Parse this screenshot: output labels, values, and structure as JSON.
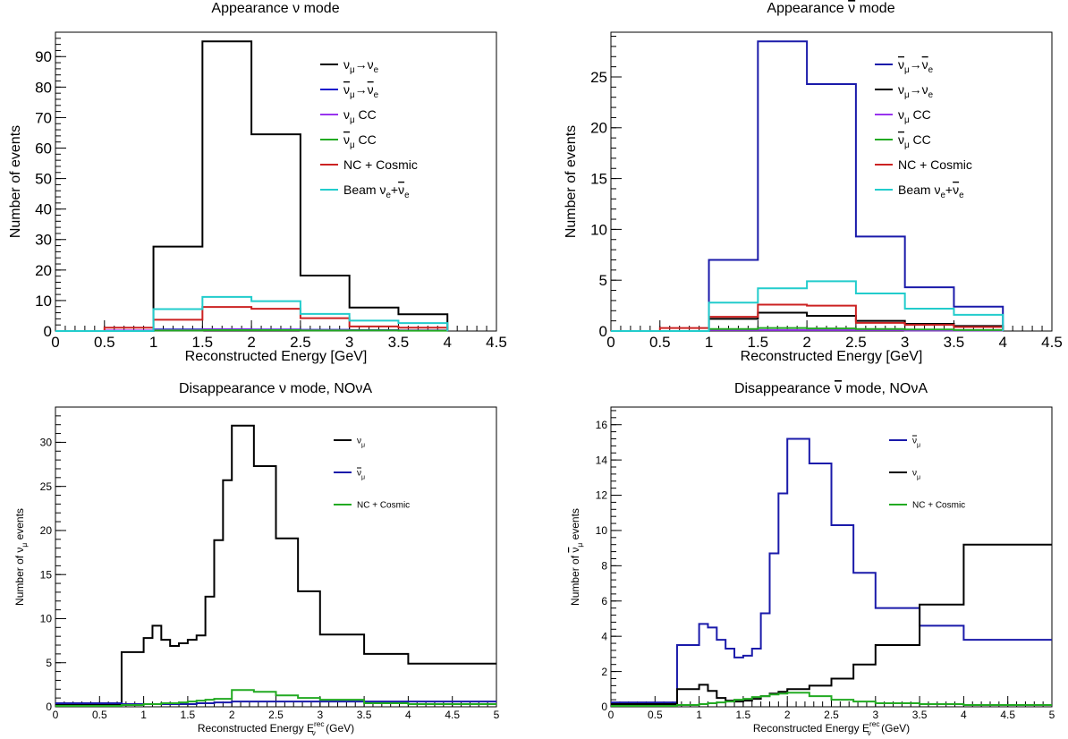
{
  "chart_data": [
    {
      "type": "line",
      "title": "Appearance ν mode",
      "xlabel": "Reconstructed Energy [GeV]",
      "ylabel": "Number of events",
      "xlim": [
        0,
        4.5
      ],
      "ylim": [
        0,
        98
      ],
      "xticks": [
        0,
        0.5,
        1,
        1.5,
        2,
        2.5,
        3,
        3.5,
        4,
        4.5
      ],
      "yticks": [
        0,
        10,
        20,
        30,
        40,
        50,
        60,
        70,
        80,
        90
      ],
      "bin_edges": [
        0,
        0.5,
        1,
        1.5,
        2,
        2.5,
        3,
        3.5,
        4
      ],
      "legend_position": "top-right",
      "series": [
        {
          "name": "νμ→νe",
          "legend_label": {
            "main": "ν",
            "sub1": "μ",
            "arrow": "→",
            "main2": "ν",
            "sub2": "e"
          },
          "color": "#000000",
          "values": [
            0,
            0,
            27.7,
            95,
            64.5,
            18.2,
            7.7,
            5.5,
            0
          ]
        },
        {
          "name": "ν̅μ→ν̅e",
          "legend_label": {
            "main": "ν",
            "bar": true,
            "sub1": "μ",
            "arrow": "→",
            "main2": "ν",
            "sub2": "e"
          },
          "color": "#1a1acc",
          "values": [
            0,
            0,
            0.5,
            0.6,
            0.5,
            0.4,
            0.3,
            0.2,
            0
          ]
        },
        {
          "name": "νμ CC",
          "legend_label": {
            "main": "ν",
            "sub1": "μ",
            "rest": "CC"
          },
          "color": "#9933ee",
          "values": [
            0,
            0.2,
            0.3,
            0.5,
            0.4,
            0.3,
            0.2,
            0.2,
            0
          ]
        },
        {
          "name": "ν̅μ CC",
          "legend_label": {
            "main": "ν",
            "bar": true,
            "sub1": "μ",
            "rest": "CC"
          },
          "color": "#22aa22",
          "values": [
            0,
            0,
            0.2,
            0.3,
            0.3,
            0.2,
            0.2,
            0.1,
            0
          ]
        },
        {
          "name": "NC + Cosmic",
          "legend_label": {
            "rest": "NC + Cosmic"
          },
          "color": "#cc2222",
          "values": [
            0,
            1.1,
            3.7,
            7.9,
            7.3,
            4.2,
            1.5,
            1.1,
            0
          ]
        },
        {
          "name": "Beam νe+ν̅e",
          "legend_label": {
            "pre": "Beam",
            "main": "ν",
            "sub1": "e",
            "plus": "+",
            "main2": "ν",
            "bar2": true,
            "sub2": "e"
          },
          "color": "#22cccc",
          "values": [
            0,
            0,
            7.2,
            11.2,
            9.8,
            5.6,
            3.4,
            2.6,
            0
          ]
        }
      ]
    },
    {
      "type": "line",
      "title": "Appearance ν̅ mode",
      "title_parts": {
        "pre": "Appearance",
        "main": "ν",
        "post": "mode"
      },
      "xlabel": "Reconstructed Energy [GeV]",
      "ylabel": "Number of events",
      "xlim": [
        0,
        4.5
      ],
      "ylim": [
        0,
        29.4
      ],
      "xticks": [
        0,
        0.5,
        1,
        1.5,
        2,
        2.5,
        3,
        3.5,
        4,
        4.5
      ],
      "yticks": [
        0,
        5,
        10,
        15,
        20,
        25
      ],
      "bin_edges": [
        0,
        0.5,
        1,
        1.5,
        2,
        2.5,
        3,
        3.5,
        4
      ],
      "legend_position": "top-right",
      "series": [
        {
          "name": "ν̅μ→ν̅e",
          "legend_label": {
            "main": "ν",
            "bar": true,
            "sub1": "μ",
            "arrow": "→",
            "main2": "ν",
            "bar2": true,
            "sub2": "e"
          },
          "color": "#1a1aaa",
          "values": [
            0,
            0,
            7.0,
            28.5,
            24.3,
            9.3,
            4.3,
            2.4,
            0
          ]
        },
        {
          "name": "νμ→νe",
          "legend_label": {
            "main": "ν",
            "sub1": "μ",
            "arrow": "→",
            "main2": "ν",
            "sub2": "e"
          },
          "color": "#000000",
          "values": [
            0,
            0,
            1.2,
            1.8,
            1.5,
            1.0,
            0.7,
            0.5,
            0
          ]
        },
        {
          "name": "νμ CC",
          "legend_label": {
            "main": "ν",
            "sub1": "μ",
            "rest": "CC"
          },
          "color": "#9933ee",
          "values": [
            0,
            0,
            0.1,
            0.1,
            0.1,
            0.1,
            0.05,
            0.05,
            0
          ]
        },
        {
          "name": "ν̅μ CC",
          "legend_label": {
            "main": "ν",
            "bar": true,
            "sub1": "μ",
            "rest": "CC"
          },
          "color": "#22aa22",
          "values": [
            0,
            0,
            0.2,
            0.3,
            0.25,
            0.2,
            0.15,
            0.1,
            0
          ]
        },
        {
          "name": "NC + Cosmic",
          "legend_label": {
            "rest": "NC + Cosmic"
          },
          "color": "#cc2222",
          "values": [
            0,
            0.3,
            1.4,
            2.6,
            2.5,
            0.8,
            0.6,
            0.4,
            0
          ]
        },
        {
          "name": "Beam νe+ν̅e",
          "legend_label": {
            "pre": "Beam",
            "main": "ν",
            "sub1": "e",
            "plus": "+",
            "main2": "ν",
            "bar2": true,
            "sub2": "e"
          },
          "color": "#22cccc",
          "values": [
            0,
            0,
            2.8,
            4.2,
            4.9,
            3.7,
            2.2,
            1.6,
            0
          ]
        }
      ]
    },
    {
      "type": "line",
      "title": "Disappearance ν mode, NOνA",
      "xlabel": "Reconstructed Energy Eν rec (GeV)",
      "xlabel_parts": {
        "pre": "Reconstructed Energy E",
        "sub": "ν",
        "sup": "rec",
        "post": "(GeV)"
      },
      "ylabel": "Number of νμ events",
      "ylabel_parts": {
        "pre": "Number of",
        "main": "ν",
        "sub": "μ",
        "post": "events"
      },
      "xlim": [
        0,
        5
      ],
      "ylim": [
        0,
        34
      ],
      "xticks": [
        0,
        0.5,
        1,
        1.5,
        2,
        2.5,
        3,
        3.5,
        4,
        4.5,
        5
      ],
      "yticks": [
        0,
        5,
        10,
        15,
        20,
        25,
        30
      ],
      "bin_edges": [
        0,
        0.75,
        1.0,
        1.1,
        1.2,
        1.3,
        1.4,
        1.5,
        1.6,
        1.7,
        1.8,
        1.9,
        2.0,
        2.25,
        2.5,
        2.75,
        3.0,
        3.5,
        4.0,
        5.0
      ],
      "legend_position": "top-right",
      "series": [
        {
          "name": "νμ",
          "legend_label": {
            "main": "ν",
            "sub1": "μ"
          },
          "color": "#000000",
          "values": [
            0.3,
            6.2,
            7.8,
            9.2,
            7.6,
            6.9,
            7.2,
            7.6,
            8.1,
            12.5,
            18.9,
            25.7,
            31.9,
            27.3,
            19.1,
            13.1,
            8.2,
            6.0,
            4.9
          ]
        },
        {
          "name": "ν̅μ",
          "legend_label": {
            "main": "ν",
            "bar": true,
            "sub1": "μ"
          },
          "color": "#1a1aaa",
          "values": [
            0.4,
            0.3,
            0.3,
            0.3,
            0.3,
            0.3,
            0.3,
            0.3,
            0.4,
            0.4,
            0.5,
            0.5,
            0.6,
            0.6,
            0.6,
            0.6,
            0.6,
            0.6,
            0.6
          ]
        },
        {
          "name": "NC + Cosmic",
          "legend_label": {
            "rest": "NC + Cosmic"
          },
          "color": "#22aa22",
          "values": [
            0.1,
            0.2,
            0.3,
            0.3,
            0.4,
            0.4,
            0.5,
            0.6,
            0.7,
            0.8,
            0.9,
            0.9,
            1.9,
            1.7,
            1.3,
            1.0,
            0.8,
            0.4,
            0.3
          ]
        }
      ]
    },
    {
      "type": "line",
      "title": "Disappearance ν̅ mode, NOνA",
      "title_parts": {
        "pre": "Disappearance",
        "main": "ν",
        "post": "mode, NOνA"
      },
      "xlabel": "Reconstructed Energy Eν̅ rec (GeV)",
      "xlabel_parts": {
        "pre": "Reconstructed Energy E",
        "sub": "ν",
        "sup": "rec",
        "post": "(GeV)"
      },
      "ylabel": "Number of ν̅μ events",
      "ylabel_parts": {
        "pre": "Number of",
        "main": "ν",
        "sub": "μ",
        "post": "events"
      },
      "xlim": [
        0,
        5
      ],
      "ylim": [
        0,
        17
      ],
      "xticks": [
        0,
        0.5,
        1,
        1.5,
        2,
        2.5,
        3,
        3.5,
        4,
        4.5,
        5
      ],
      "yticks": [
        0,
        2,
        4,
        6,
        8,
        10,
        12,
        14,
        16
      ],
      "bin_edges": [
        0,
        0.75,
        1.0,
        1.1,
        1.2,
        1.3,
        1.4,
        1.5,
        1.6,
        1.7,
        1.8,
        1.9,
        2.0,
        2.25,
        2.5,
        2.75,
        3.0,
        3.5,
        4.0,
        5.0
      ],
      "legend_position": "top-right",
      "series": [
        {
          "name": "ν̅μ",
          "legend_label": {
            "main": "ν",
            "bar": true,
            "sub1": "μ"
          },
          "color": "#1a1aaa",
          "values": [
            0.25,
            3.5,
            4.7,
            4.5,
            3.8,
            3.3,
            2.8,
            2.9,
            3.3,
            5.3,
            8.7,
            12.1,
            15.2,
            13.8,
            10.3,
            7.6,
            5.6,
            4.6,
            3.8
          ]
        },
        {
          "name": "νμ",
          "legend_label": {
            "main": "ν",
            "sub1": "μ"
          },
          "color": "#000000",
          "values": [
            0.15,
            1.0,
            1.25,
            0.9,
            0.5,
            0.35,
            0.3,
            0.35,
            0.45,
            0.6,
            0.75,
            0.85,
            1.0,
            1.2,
            1.6,
            2.4,
            3.5,
            5.8,
            9.2
          ]
        },
        {
          "name": "NC + Cosmic",
          "legend_label": {
            "rest": "NC + Cosmic"
          },
          "color": "#22aa22",
          "values": [
            0.05,
            0.1,
            0.15,
            0.2,
            0.25,
            0.3,
            0.4,
            0.45,
            0.55,
            0.6,
            0.7,
            0.75,
            0.8,
            0.6,
            0.4,
            0.3,
            0.2,
            0.15,
            0.1
          ]
        }
      ]
    }
  ]
}
